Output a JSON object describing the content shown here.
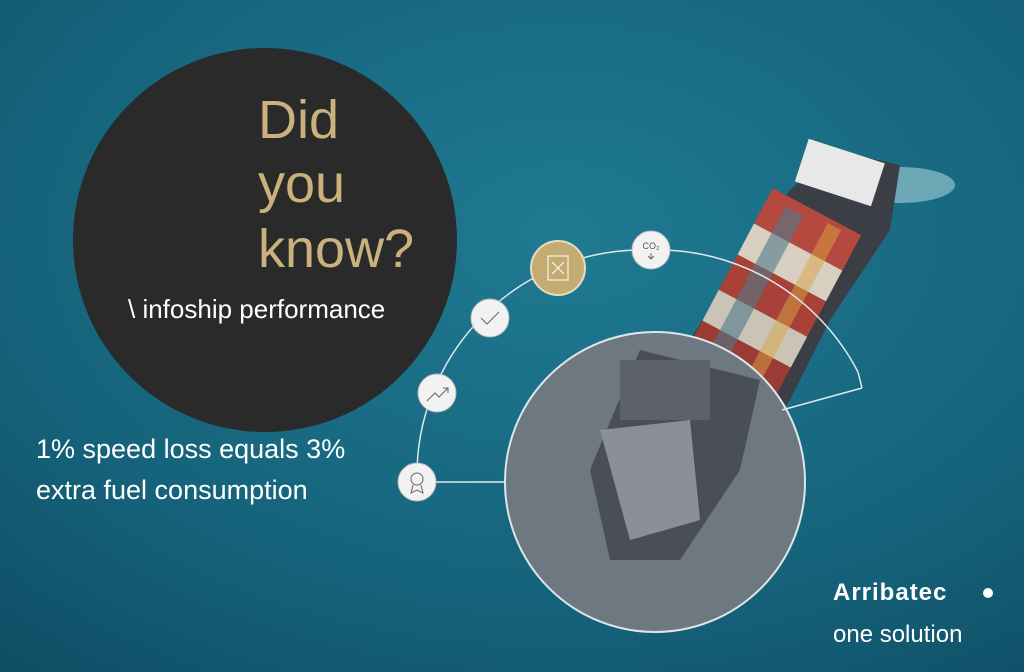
{
  "headline": {
    "lines": [
      "Did",
      "you",
      "know?"
    ]
  },
  "tagline": "\\ infoship performance",
  "fact": {
    "lines": [
      "1% speed loss equals 3%",
      "extra fuel consumption"
    ]
  },
  "icons": {
    "co2_label": "CO₂"
  },
  "brand": {
    "name": "Arribatec",
    "slogan": "one solution"
  }
}
